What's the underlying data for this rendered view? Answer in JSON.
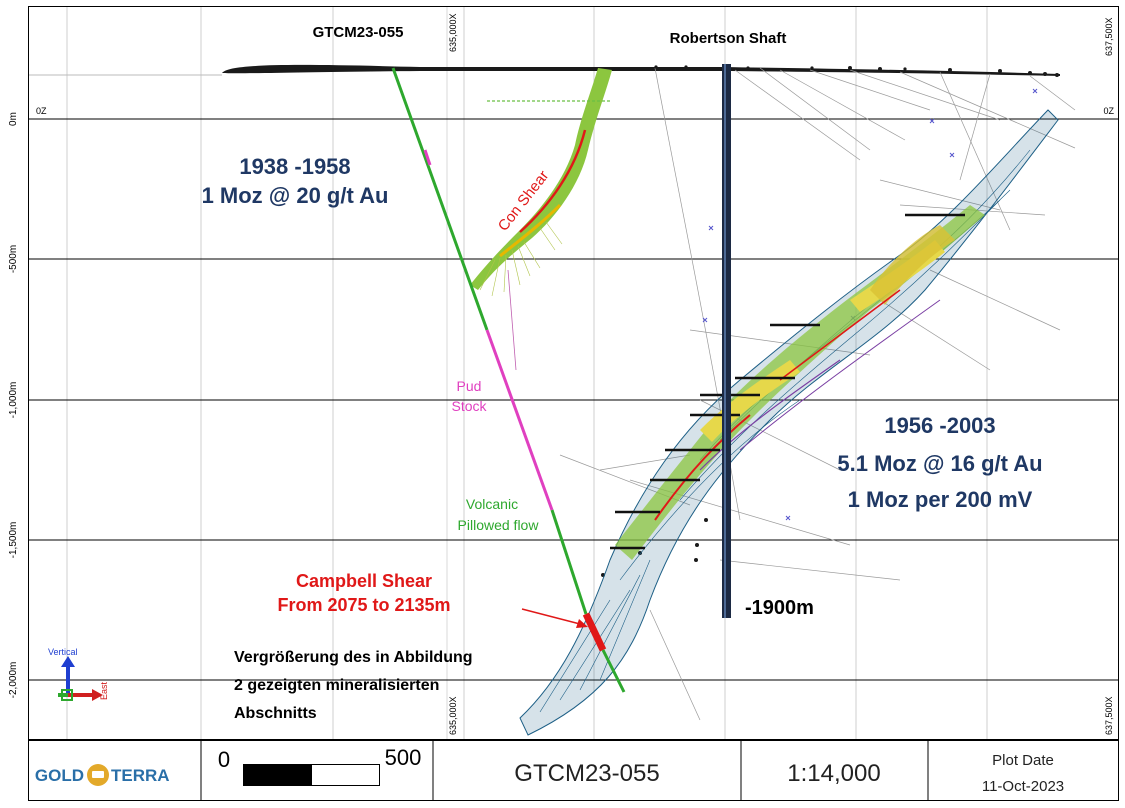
{
  "colors": {
    "grid": "#000000",
    "title_blue": "#1f3864",
    "drillhole_green": "#2ea82e",
    "drillhole_magenta": "#e040c0",
    "shear_red": "#e01818",
    "shaft": "#1c2a44",
    "mesh_blue": "#1d5f86",
    "brand_gold": "#e3a92a",
    "brand_blue": "#2a6fa8"
  },
  "section": {
    "easting_labels": [
      "635,000X",
      "637,500X",
      "635,000X",
      "637,500X"
    ],
    "elevation_labels": [
      "0m",
      "-500m",
      "-1,000m",
      "-1,500m",
      "-2,000m"
    ],
    "z_labels": [
      "0Z",
      "0Z"
    ],
    "drillhole_label": "GTCM23-055",
    "shaft_label": "Robertson Shaft",
    "shaft_depth_label": "-1900m",
    "con_shear_label": "Con Shear",
    "pud_stock_label": [
      "Pud",
      "Stock"
    ],
    "volcanic_label": [
      "Volcanic",
      "Pillowed flow"
    ],
    "campbell_shear_label": [
      "Campbell Shear",
      "From 2075 to 2135m"
    ],
    "callout_lines": [
      "Vergrößerung des in Abbildung",
      "2 gezeigten mineralisierten",
      "Abschnitts"
    ],
    "history_1": [
      "1938 -1958",
      "1 Moz @ 20 g/t Au"
    ],
    "history_2": [
      "1956 -2003",
      "5.1 Moz @ 16 g/t Au",
      "1 Moz per 200 mV"
    ],
    "axis_vertical": "Vertical",
    "axis_east": "East"
  },
  "footer": {
    "logo_left": "GOLD",
    "logo_right": "TERRA",
    "scale_min": "0",
    "scale_max": "500",
    "hole_id": "GTCM23-055",
    "scale_ratio": "1:14,000",
    "plot_date_label": "Plot Date",
    "plot_date_value": "11-Oct-2023"
  }
}
